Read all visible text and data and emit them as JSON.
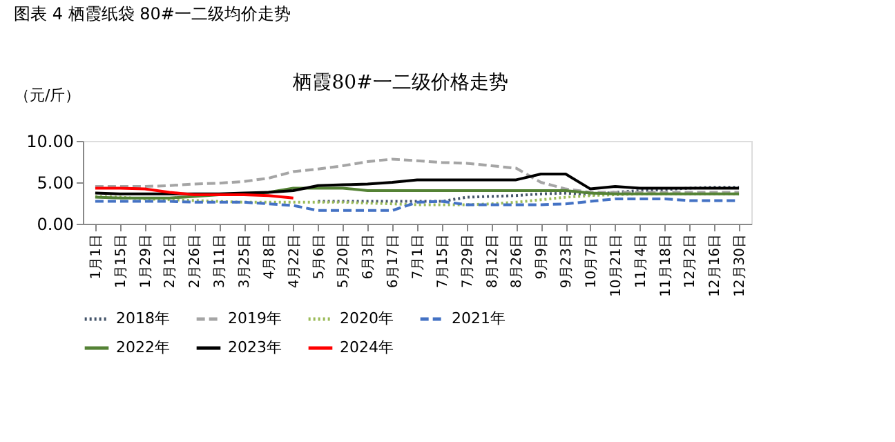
{
  "chart_data": {
    "type": "line",
    "title": "图表 4  栖霞纸袋 80#一二级均价走势",
    "subtitle": "栖霞80#一二级价格走势",
    "ylabel": "（元/斤）",
    "categories": [
      "1月1日",
      "1月15日",
      "1月29日",
      "2月12日",
      "2月26日",
      "3月11日",
      "3月25日",
      "4月8日",
      "4月22日",
      "5月6日",
      "5月20日",
      "6月3日",
      "6月17日",
      "7月1日",
      "7月15日",
      "7月29日",
      "8月12日",
      "8月26日",
      "9月9日",
      "9月23日",
      "10月7日",
      "10月21日",
      "11月4日",
      "11月18日",
      "12月2日",
      "12月16日",
      "12月30日"
    ],
    "ylim": [
      0,
      10
    ],
    "yticks": [
      {
        "value": 0,
        "label": "0.00"
      },
      {
        "value": 5,
        "label": "5.00"
      },
      {
        "value": 10,
        "label": "10.00"
      }
    ],
    "grid": false,
    "legend": "bottom",
    "series": [
      {
        "name": "2018年",
        "color": "#44546a",
        "line_style": "dotted",
        "values": [
          null,
          null,
          null,
          null,
          null,
          null,
          null,
          null,
          null,
          2.7,
          2.7,
          2.7,
          2.7,
          2.7,
          2.7,
          3.2,
          3.3,
          3.4,
          3.6,
          3.7,
          3.5,
          3.8,
          4.0,
          4.1,
          4.3,
          4.4,
          4.4
        ]
      },
      {
        "name": "2019年",
        "color": "#a5a5a5",
        "line_style": "dashed",
        "values": [
          4.5,
          4.5,
          4.5,
          4.6,
          4.8,
          4.9,
          5.1,
          5.5,
          6.3,
          6.6,
          7.0,
          7.5,
          7.8,
          7.6,
          7.4,
          7.3,
          7.0,
          6.7,
          5.0,
          4.2,
          3.8,
          3.8,
          3.8,
          3.8,
          3.8,
          3.8,
          3.8
        ]
      },
      {
        "name": "2020年",
        "color": "#9bbb59",
        "line_style": "dotted",
        "values": [
          3.3,
          3.2,
          3.0,
          2.9,
          2.8,
          2.7,
          2.6,
          2.6,
          2.6,
          2.6,
          2.6,
          2.5,
          2.4,
          2.3,
          2.3,
          2.3,
          2.4,
          2.6,
          2.9,
          3.2,
          3.4,
          3.5,
          3.6,
          3.6,
          3.6,
          3.6,
          3.6
        ]
      },
      {
        "name": "2021年",
        "color": "#4472c4",
        "line_style": "dashed",
        "values": [
          2.7,
          2.7,
          2.7,
          2.7,
          2.6,
          2.6,
          2.6,
          2.4,
          2.2,
          1.6,
          1.6,
          1.6,
          1.6,
          2.6,
          2.7,
          2.3,
          2.3,
          2.3,
          2.3,
          2.4,
          2.7,
          3.0,
          3.0,
          3.0,
          2.8,
          2.8,
          2.8
        ]
      },
      {
        "name": "2022年",
        "color": "#548235",
        "line_style": "solid",
        "values": [
          3.2,
          3.1,
          3.1,
          3.1,
          3.3,
          3.5,
          3.6,
          3.8,
          4.3,
          4.3,
          4.3,
          4.0,
          4.0,
          4.0,
          4.0,
          4.0,
          4.0,
          4.0,
          4.0,
          4.0,
          3.7,
          3.6,
          3.6,
          3.6,
          3.6,
          3.6,
          3.6
        ]
      },
      {
        "name": "2023年",
        "color": "#000000",
        "line_style": "solid",
        "values": [
          3.7,
          3.6,
          3.6,
          3.6,
          3.6,
          3.6,
          3.7,
          3.8,
          4.0,
          4.6,
          4.7,
          4.8,
          5.0,
          5.3,
          5.3,
          5.3,
          5.3,
          5.3,
          6.0,
          6.0,
          4.2,
          4.5,
          4.3,
          4.3,
          4.3,
          4.3,
          4.3
        ]
      },
      {
        "name": "2024年",
        "color": "#ff0000",
        "line_style": "solid",
        "values": [
          4.3,
          4.3,
          4.2,
          3.8,
          3.5,
          3.5,
          3.5,
          3.4,
          3.1,
          null,
          null,
          null,
          null,
          null,
          null,
          null,
          null,
          null,
          null,
          null,
          null,
          null,
          null,
          null,
          null,
          null,
          null
        ]
      }
    ]
  }
}
